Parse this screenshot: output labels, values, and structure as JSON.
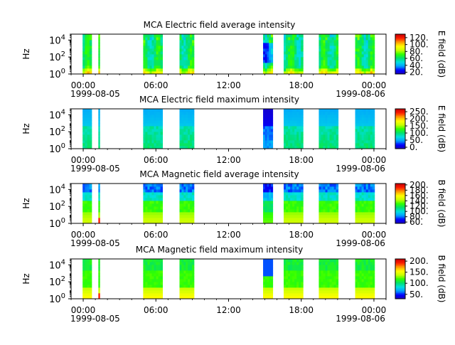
{
  "chart_data": [
    {
      "type": "heatmap",
      "title": "MCA  Electric field average intensity",
      "ylabel": "Hz",
      "yscale": "log",
      "ylim": [
        1,
        50000
      ],
      "ytick_values": [
        1,
        100,
        10000
      ],
      "ytick_labels": [
        {
          "base": "10",
          "exp": "0"
        },
        {
          "base": "10",
          "exp": "2"
        },
        {
          "base": "10",
          "exp": "4"
        }
      ],
      "xlim_hours": [
        -1,
        25
      ],
      "xtick_hours": [
        0,
        6,
        12,
        18,
        24
      ],
      "xtick_labels": [
        "00:00",
        "06:00",
        "12:00",
        "18:00",
        "00:00"
      ],
      "x_minor_step_hours": 1,
      "date_start": "1999-08-05",
      "date_end": "1999-08-06",
      "data_intervals_hours": [
        [
          -0.05,
          0.7
        ],
        [
          1.25,
          1.35
        ],
        [
          4.95,
          6.55
        ],
        [
          7.95,
          9.15
        ],
        [
          14.85,
          15.65
        ],
        [
          16.55,
          18.15
        ],
        [
          19.45,
          21.05
        ],
        [
          22.45,
          24.05
        ]
      ],
      "pattern": "avg",
      "colorbar": {
        "label": "E field (dB)",
        "range": [
          15,
          130
        ],
        "ticks": [
          20,
          40,
          60,
          80,
          100,
          120
        ],
        "tick_labels": [
          "20.",
          "40.",
          "60.",
          "80.",
          "100.",
          "120."
        ],
        "colormap": [
          "#1e00b4",
          "#0000ff",
          "#00a0ff",
          "#00e0e0",
          "#00e070",
          "#30ff00",
          "#c8ff00",
          "#ffff00",
          "#ffa000",
          "#ff2000",
          "#c80000"
        ]
      }
    },
    {
      "type": "heatmap",
      "title": "MCA  Electric field maximum intensity",
      "ylabel": "Hz",
      "yscale": "log",
      "ylim": [
        1,
        50000
      ],
      "ytick_values": [
        1,
        100,
        10000
      ],
      "ytick_labels": [
        {
          "base": "10",
          "exp": "0"
        },
        {
          "base": "10",
          "exp": "2"
        },
        {
          "base": "10",
          "exp": "4"
        }
      ],
      "xlim_hours": [
        -1,
        25
      ],
      "xtick_hours": [
        0,
        6,
        12,
        18,
        24
      ],
      "xtick_labels": [
        "00:00",
        "06:00",
        "12:00",
        "18:00",
        "00:00"
      ],
      "x_minor_step_hours": 1,
      "date_start": "1999-08-05",
      "date_end": "1999-08-06",
      "data_intervals_hours": [
        [
          -0.05,
          0.7
        ],
        [
          1.25,
          1.35
        ],
        [
          4.95,
          6.55
        ],
        [
          7.95,
          9.15
        ],
        [
          14.85,
          15.65
        ],
        [
          16.55,
          18.15
        ],
        [
          19.45,
          21.05
        ],
        [
          22.45,
          24.05
        ]
      ],
      "pattern": "max",
      "colorbar": {
        "label": "E field (dB)",
        "range": [
          -10,
          270
        ],
        "ticks": [
          0,
          50,
          100,
          150,
          200,
          250
        ],
        "tick_labels": [
          "0.",
          "50.",
          "100.",
          "150.",
          "200.",
          "250."
        ],
        "colormap": [
          "#1e00b4",
          "#0000ff",
          "#00a0ff",
          "#00e0e0",
          "#00e070",
          "#30ff00",
          "#c8ff00",
          "#ffff00",
          "#ffa000",
          "#ff2000",
          "#c80000"
        ]
      }
    },
    {
      "type": "heatmap",
      "title": "MCA  Magnetic field average intensity",
      "ylabel": "Hz",
      "yscale": "log",
      "ylim": [
        1,
        50000
      ],
      "ytick_values": [
        1,
        100,
        10000
      ],
      "ytick_labels": [
        {
          "base": "10",
          "exp": "0"
        },
        {
          "base": "10",
          "exp": "2"
        },
        {
          "base": "10",
          "exp": "4"
        }
      ],
      "xlim_hours": [
        -1,
        25
      ],
      "xtick_hours": [
        0,
        6,
        12,
        18,
        24
      ],
      "xtick_labels": [
        "00:00",
        "06:00",
        "12:00",
        "18:00",
        "00:00"
      ],
      "x_minor_step_hours": 1,
      "date_start": "1999-08-05",
      "date_end": "1999-08-06",
      "data_intervals_hours": [
        [
          -0.05,
          0.7
        ],
        [
          1.25,
          1.35
        ],
        [
          4.95,
          6.55
        ],
        [
          7.95,
          9.15
        ],
        [
          14.85,
          15.65
        ],
        [
          16.55,
          18.15
        ],
        [
          19.45,
          21.05
        ],
        [
          22.45,
          24.05
        ]
      ],
      "pattern": "bavg",
      "colorbar": {
        "label": "B field (dB)",
        "range": [
          55,
          205
        ],
        "ticks": [
          60,
          80,
          100,
          120,
          140,
          160,
          180,
          200
        ],
        "tick_labels": [
          "60.",
          "80.",
          "100.",
          "120.",
          "140.",
          "160.",
          "180.",
          "200."
        ],
        "colormap": [
          "#1e00b4",
          "#0000ff",
          "#00a0ff",
          "#00e0e0",
          "#00e070",
          "#30ff00",
          "#c8ff00",
          "#ffff00",
          "#ffa000",
          "#ff2000",
          "#c80000"
        ]
      }
    },
    {
      "type": "heatmap",
      "title": "MCA  Magnetic field maximum intensity",
      "ylabel": "Hz",
      "yscale": "log",
      "ylim": [
        1,
        50000
      ],
      "ytick_values": [
        1,
        100,
        10000
      ],
      "ytick_labels": [
        {
          "base": "10",
          "exp": "0"
        },
        {
          "base": "10",
          "exp": "2"
        },
        {
          "base": "10",
          "exp": "4"
        }
      ],
      "xlim_hours": [
        -1,
        25
      ],
      "xtick_hours": [
        0,
        6,
        12,
        18,
        24
      ],
      "xtick_labels": [
        "00:00",
        "06:00",
        "12:00",
        "18:00",
        "00:00"
      ],
      "x_minor_step_hours": 1,
      "date_start": "1999-08-05",
      "date_end": "1999-08-06",
      "data_intervals_hours": [
        [
          -0.05,
          0.7
        ],
        [
          1.25,
          1.35
        ],
        [
          4.95,
          6.55
        ],
        [
          7.95,
          9.15
        ],
        [
          14.85,
          15.65
        ],
        [
          16.55,
          18.15
        ],
        [
          19.45,
          21.05
        ],
        [
          22.45,
          24.05
        ]
      ],
      "pattern": "bmax",
      "colorbar": {
        "label": "B field (dB)",
        "range": [
          30,
          210
        ],
        "ticks": [
          50,
          100,
          150,
          200
        ],
        "tick_labels": [
          "50.",
          "100.",
          "150.",
          "200."
        ],
        "colormap": [
          "#1e00b4",
          "#0000ff",
          "#00a0ff",
          "#00e0e0",
          "#00e070",
          "#30ff00",
          "#c8ff00",
          "#ffff00",
          "#ffa000",
          "#ff2000",
          "#c80000"
        ]
      }
    }
  ]
}
